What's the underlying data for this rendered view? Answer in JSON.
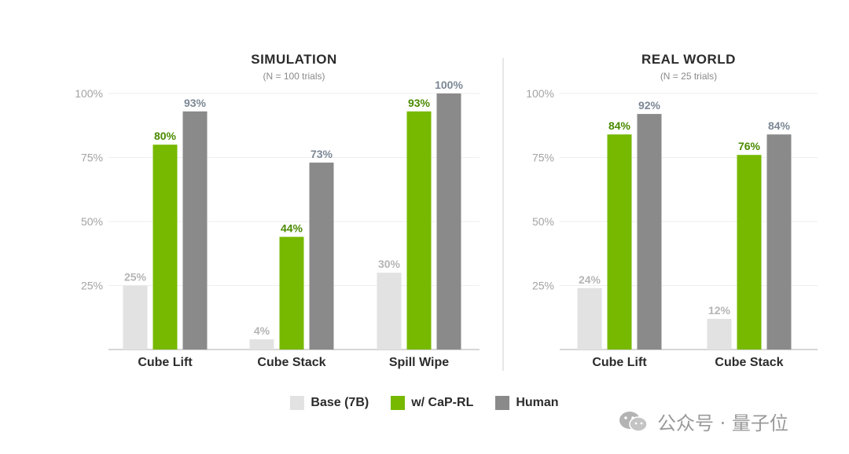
{
  "colors": {
    "base": "#e2e2e2",
    "capRL": "#76b900",
    "human": "#8a8a8a",
    "base_label": "#b5b5b5",
    "capRL_label": "#4a8a00",
    "human_label": "#7b8794",
    "grid": "#eeeeee",
    "axis": "#bdbdbd",
    "divider": "#d7d7d7"
  },
  "legend": [
    {
      "label": "Base (7B)",
      "key": "base"
    },
    {
      "label": "w/ CaP-RL",
      "key": "capRL"
    },
    {
      "label": "Human",
      "key": "human"
    }
  ],
  "watermark": {
    "text": "公众号 · 量子位",
    "icon": "wechat-icon"
  },
  "chart_data": [
    {
      "type": "bar",
      "title": "SIMULATION",
      "subtitle": "(N = 100 trials)",
      "categories": [
        "Cube Lift",
        "Cube Stack",
        "Spill Wipe"
      ],
      "ylim": [
        0,
        100
      ],
      "yticks": [
        25,
        50,
        75,
        100
      ],
      "ytick_labels": [
        "25%",
        "50%",
        "75%",
        "100%"
      ],
      "grid": true,
      "series": [
        {
          "name": "Base (7B)",
          "key": "base",
          "values": [
            25,
            4,
            30
          ],
          "labels": [
            "25%",
            "4%",
            "30%"
          ]
        },
        {
          "name": "w/ CaP-RL",
          "key": "capRL",
          "values": [
            80,
            44,
            93
          ],
          "labels": [
            "80%",
            "44%",
            "93%"
          ]
        },
        {
          "name": "Human",
          "key": "human",
          "values": [
            93,
            73,
            100
          ],
          "labels": [
            "93%",
            "73%",
            "100%"
          ]
        }
      ]
    },
    {
      "type": "bar",
      "title": "REAL WORLD",
      "subtitle": "(N = 25 trials)",
      "categories": [
        "Cube Lift",
        "Cube Stack"
      ],
      "ylim": [
        0,
        100
      ],
      "yticks": [
        25,
        50,
        75,
        100
      ],
      "ytick_labels": [
        "25%",
        "50%",
        "75%",
        "100%"
      ],
      "grid": true,
      "series": [
        {
          "name": "Base (7B)",
          "key": "base",
          "values": [
            24,
            12
          ],
          "labels": [
            "24%",
            "12%"
          ]
        },
        {
          "name": "w/ CaP-RL",
          "key": "capRL",
          "values": [
            84,
            76
          ],
          "labels": [
            "84%",
            "76%"
          ]
        },
        {
          "name": "Human",
          "key": "human",
          "values": [
            92,
            84
          ],
          "labels": [
            "92%",
            "84%"
          ]
        }
      ]
    }
  ]
}
